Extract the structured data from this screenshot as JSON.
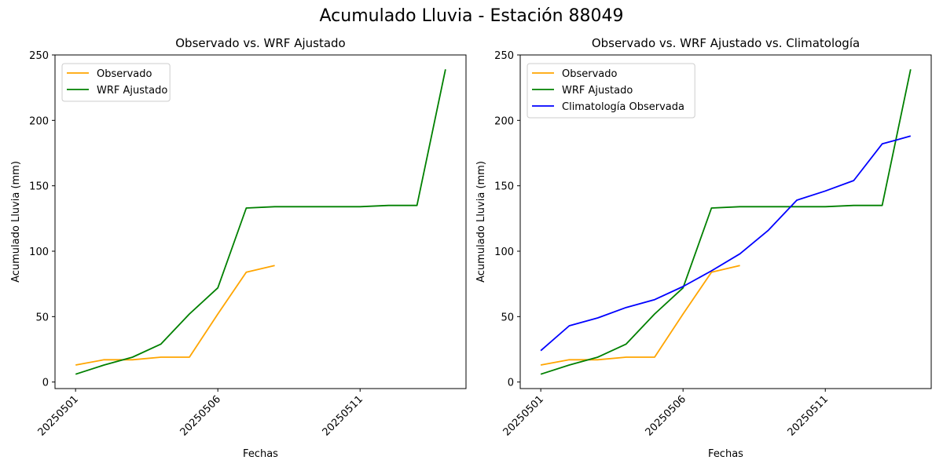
{
  "figure": {
    "title": "Acumulado Lluvia - Estación 88049"
  },
  "colors": {
    "observado": "#FFA500",
    "wrf": "#008000",
    "clima": "#0000FF"
  },
  "chart_data": [
    {
      "type": "line",
      "title": "Observado vs. WRF Ajustado",
      "xlabel": "Fechas",
      "ylabel": "Acumulado Lluvia (mm)",
      "x": [
        "20250501",
        "20250502",
        "20250503",
        "20250504",
        "20250505",
        "20250506",
        "20250507",
        "20250508",
        "20250509",
        "20250510",
        "20250511",
        "20250512",
        "20250513",
        "20250514"
      ],
      "x_ticks": [
        "20250501",
        "20250506",
        "20250511"
      ],
      "y_ticks": [
        0,
        50,
        100,
        150,
        200,
        250
      ],
      "ylim": [
        -5,
        250
      ],
      "grid": false,
      "legend": "top-left",
      "series": [
        {
          "name": "Observado",
          "color": "#FFA500",
          "values": [
            13,
            17,
            17,
            19,
            19,
            52,
            84,
            89,
            null,
            null,
            null,
            null,
            null,
            null
          ]
        },
        {
          "name": "WRF Ajustado",
          "color": "#008000",
          "values": [
            6,
            13,
            19,
            29,
            52,
            72,
            133,
            134,
            134,
            134,
            134,
            135,
            135,
            239
          ]
        }
      ]
    },
    {
      "type": "line",
      "title": "Observado vs. WRF Ajustado vs. Climatología",
      "xlabel": "Fechas",
      "ylabel": "Acumulado Lluvia (mm)",
      "x": [
        "20250501",
        "20250502",
        "20250503",
        "20250504",
        "20250505",
        "20250506",
        "20250507",
        "20250508",
        "20250509",
        "20250510",
        "20250511",
        "20250512",
        "20250513",
        "20250514"
      ],
      "x_ticks": [
        "20250501",
        "20250506",
        "20250511"
      ],
      "y_ticks": [
        0,
        50,
        100,
        150,
        200,
        250
      ],
      "ylim": [
        -5,
        250
      ],
      "grid": false,
      "legend": "top-left",
      "series": [
        {
          "name": "Observado",
          "color": "#FFA500",
          "values": [
            13,
            17,
            17,
            19,
            19,
            52,
            84,
            89,
            null,
            null,
            null,
            null,
            null,
            null
          ]
        },
        {
          "name": "WRF Ajustado",
          "color": "#008000",
          "values": [
            6,
            13,
            19,
            29,
            52,
            72,
            133,
            134,
            134,
            134,
            134,
            135,
            135,
            239
          ]
        },
        {
          "name": "Climatología Observada",
          "color": "#0000FF",
          "values": [
            24,
            43,
            49,
            57,
            63,
            73,
            85,
            98,
            116,
            139,
            146,
            154,
            182,
            188
          ]
        }
      ]
    }
  ]
}
